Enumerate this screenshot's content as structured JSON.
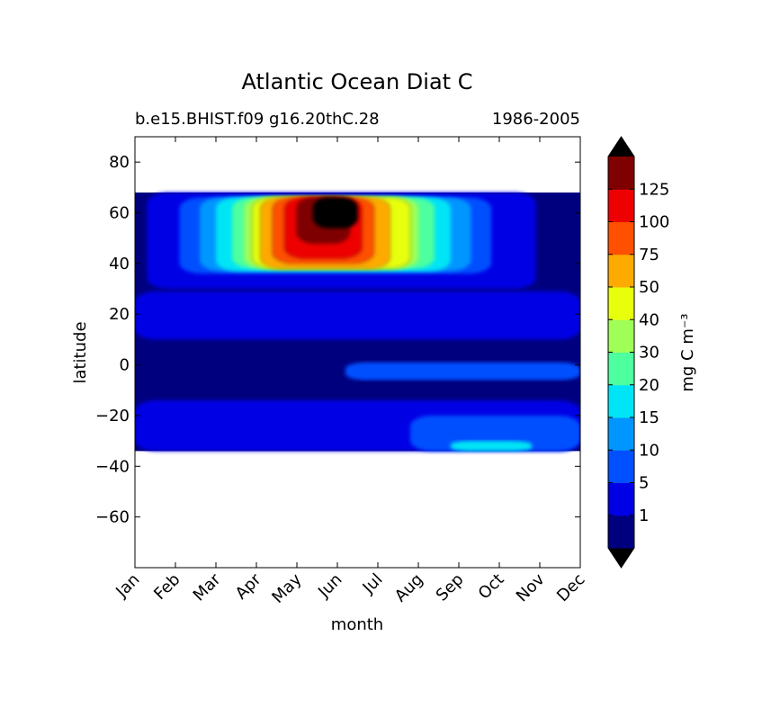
{
  "chart_data": {
    "type": "heatmap",
    "title": "Atlantic Ocean Diat C",
    "subtitle_left": "b.e15.BHIST.f09 g16.20thC.28",
    "subtitle_right": "1986-2005",
    "xlabel": "month",
    "ylabel": "latitude",
    "x_categories": [
      "Jan",
      "Feb",
      "Mar",
      "Apr",
      "May",
      "Jun",
      "Jul",
      "Aug",
      "Sep",
      "Oct",
      "Nov",
      "Dec"
    ],
    "xlim": [
      0,
      11
    ],
    "ylim": [
      -80,
      90
    ],
    "y_ticks": [
      80,
      60,
      40,
      20,
      0,
      -20,
      -40,
      -60
    ],
    "y_tick_labels": [
      "80",
      "60",
      "40",
      "20",
      "0",
      "−20",
      "−40",
      "−60"
    ],
    "data_lat_range": [
      -34,
      68
    ],
    "grid": false,
    "colorbar": {
      "label": "mg C m⁻³",
      "levels": [
        1,
        5,
        10,
        15,
        20,
        30,
        40,
        50,
        75,
        100,
        125
      ],
      "tick_labels": [
        "1",
        "5",
        "10",
        "15",
        "20",
        "30",
        "40",
        "50",
        "75",
        "100",
        "125"
      ],
      "colors": [
        "#00007f",
        "#0000e5",
        "#0050ff",
        "#0096ff",
        "#00e5f5",
        "#4dff9f",
        "#a0ff56",
        "#e8ff0c",
        "#ffaa00",
        "#ff5000",
        "#ee0000",
        "#7f0000"
      ],
      "extend_min_color": "#000000",
      "extend_max_color": "#000000"
    },
    "regions": [
      {
        "level": 0,
        "lat_max": 68,
        "lat_min": -34,
        "months": [
          0,
          11
        ]
      },
      {
        "level": 1,
        "lat_max": 68,
        "lat_min": 30,
        "months": [
          0.3,
          9.9
        ]
      },
      {
        "level": 1,
        "lat_max": 29,
        "lat_min": 10,
        "months": [
          0,
          11
        ]
      },
      {
        "level": 1,
        "lat_max": -14,
        "lat_min": -34,
        "months": [
          0,
          11
        ]
      },
      {
        "level": 2,
        "lat_max": 66,
        "lat_min": 36,
        "months": [
          1.1,
          8.8
        ]
      },
      {
        "level": 2,
        "lat_max": -20,
        "lat_min": -34,
        "months": [
          6.8,
          11
        ]
      },
      {
        "level": 2,
        "lat_max": 1,
        "lat_min": -6,
        "months": [
          5.2,
          11
        ]
      },
      {
        "level": 3,
        "lat_max": 66,
        "lat_min": 37,
        "months": [
          1.6,
          8.3
        ]
      },
      {
        "level": 4,
        "lat_max": 66,
        "lat_min": 37,
        "months": [
          2.0,
          7.8
        ]
      },
      {
        "level": 4,
        "lat_max": -30,
        "lat_min": -34,
        "months": [
          7.8,
          9.8
        ]
      },
      {
        "level": 5,
        "lat_max": 66,
        "lat_min": 38,
        "months": [
          2.4,
          7.4
        ]
      },
      {
        "level": 6,
        "lat_max": 66,
        "lat_min": 38,
        "months": [
          2.7,
          7.0
        ]
      },
      {
        "level": 7,
        "lat_max": 66,
        "lat_min": 38,
        "months": [
          2.9,
          6.8
        ]
      },
      {
        "level": 8,
        "lat_max": 66,
        "lat_min": 38,
        "months": [
          3.1,
          6.3
        ]
      },
      {
        "level": 9,
        "lat_max": 66,
        "lat_min": 40,
        "months": [
          3.4,
          5.9
        ]
      },
      {
        "level": 10,
        "lat_max": 66,
        "lat_min": 42,
        "months": [
          3.7,
          5.6
        ]
      },
      {
        "level": 11,
        "lat_max": 66,
        "lat_min": 48,
        "months": [
          4.0,
          5.3
        ]
      },
      {
        "level": 12,
        "lat_max": 66,
        "lat_min": 54,
        "months": [
          4.4,
          5.5
        ]
      }
    ]
  }
}
